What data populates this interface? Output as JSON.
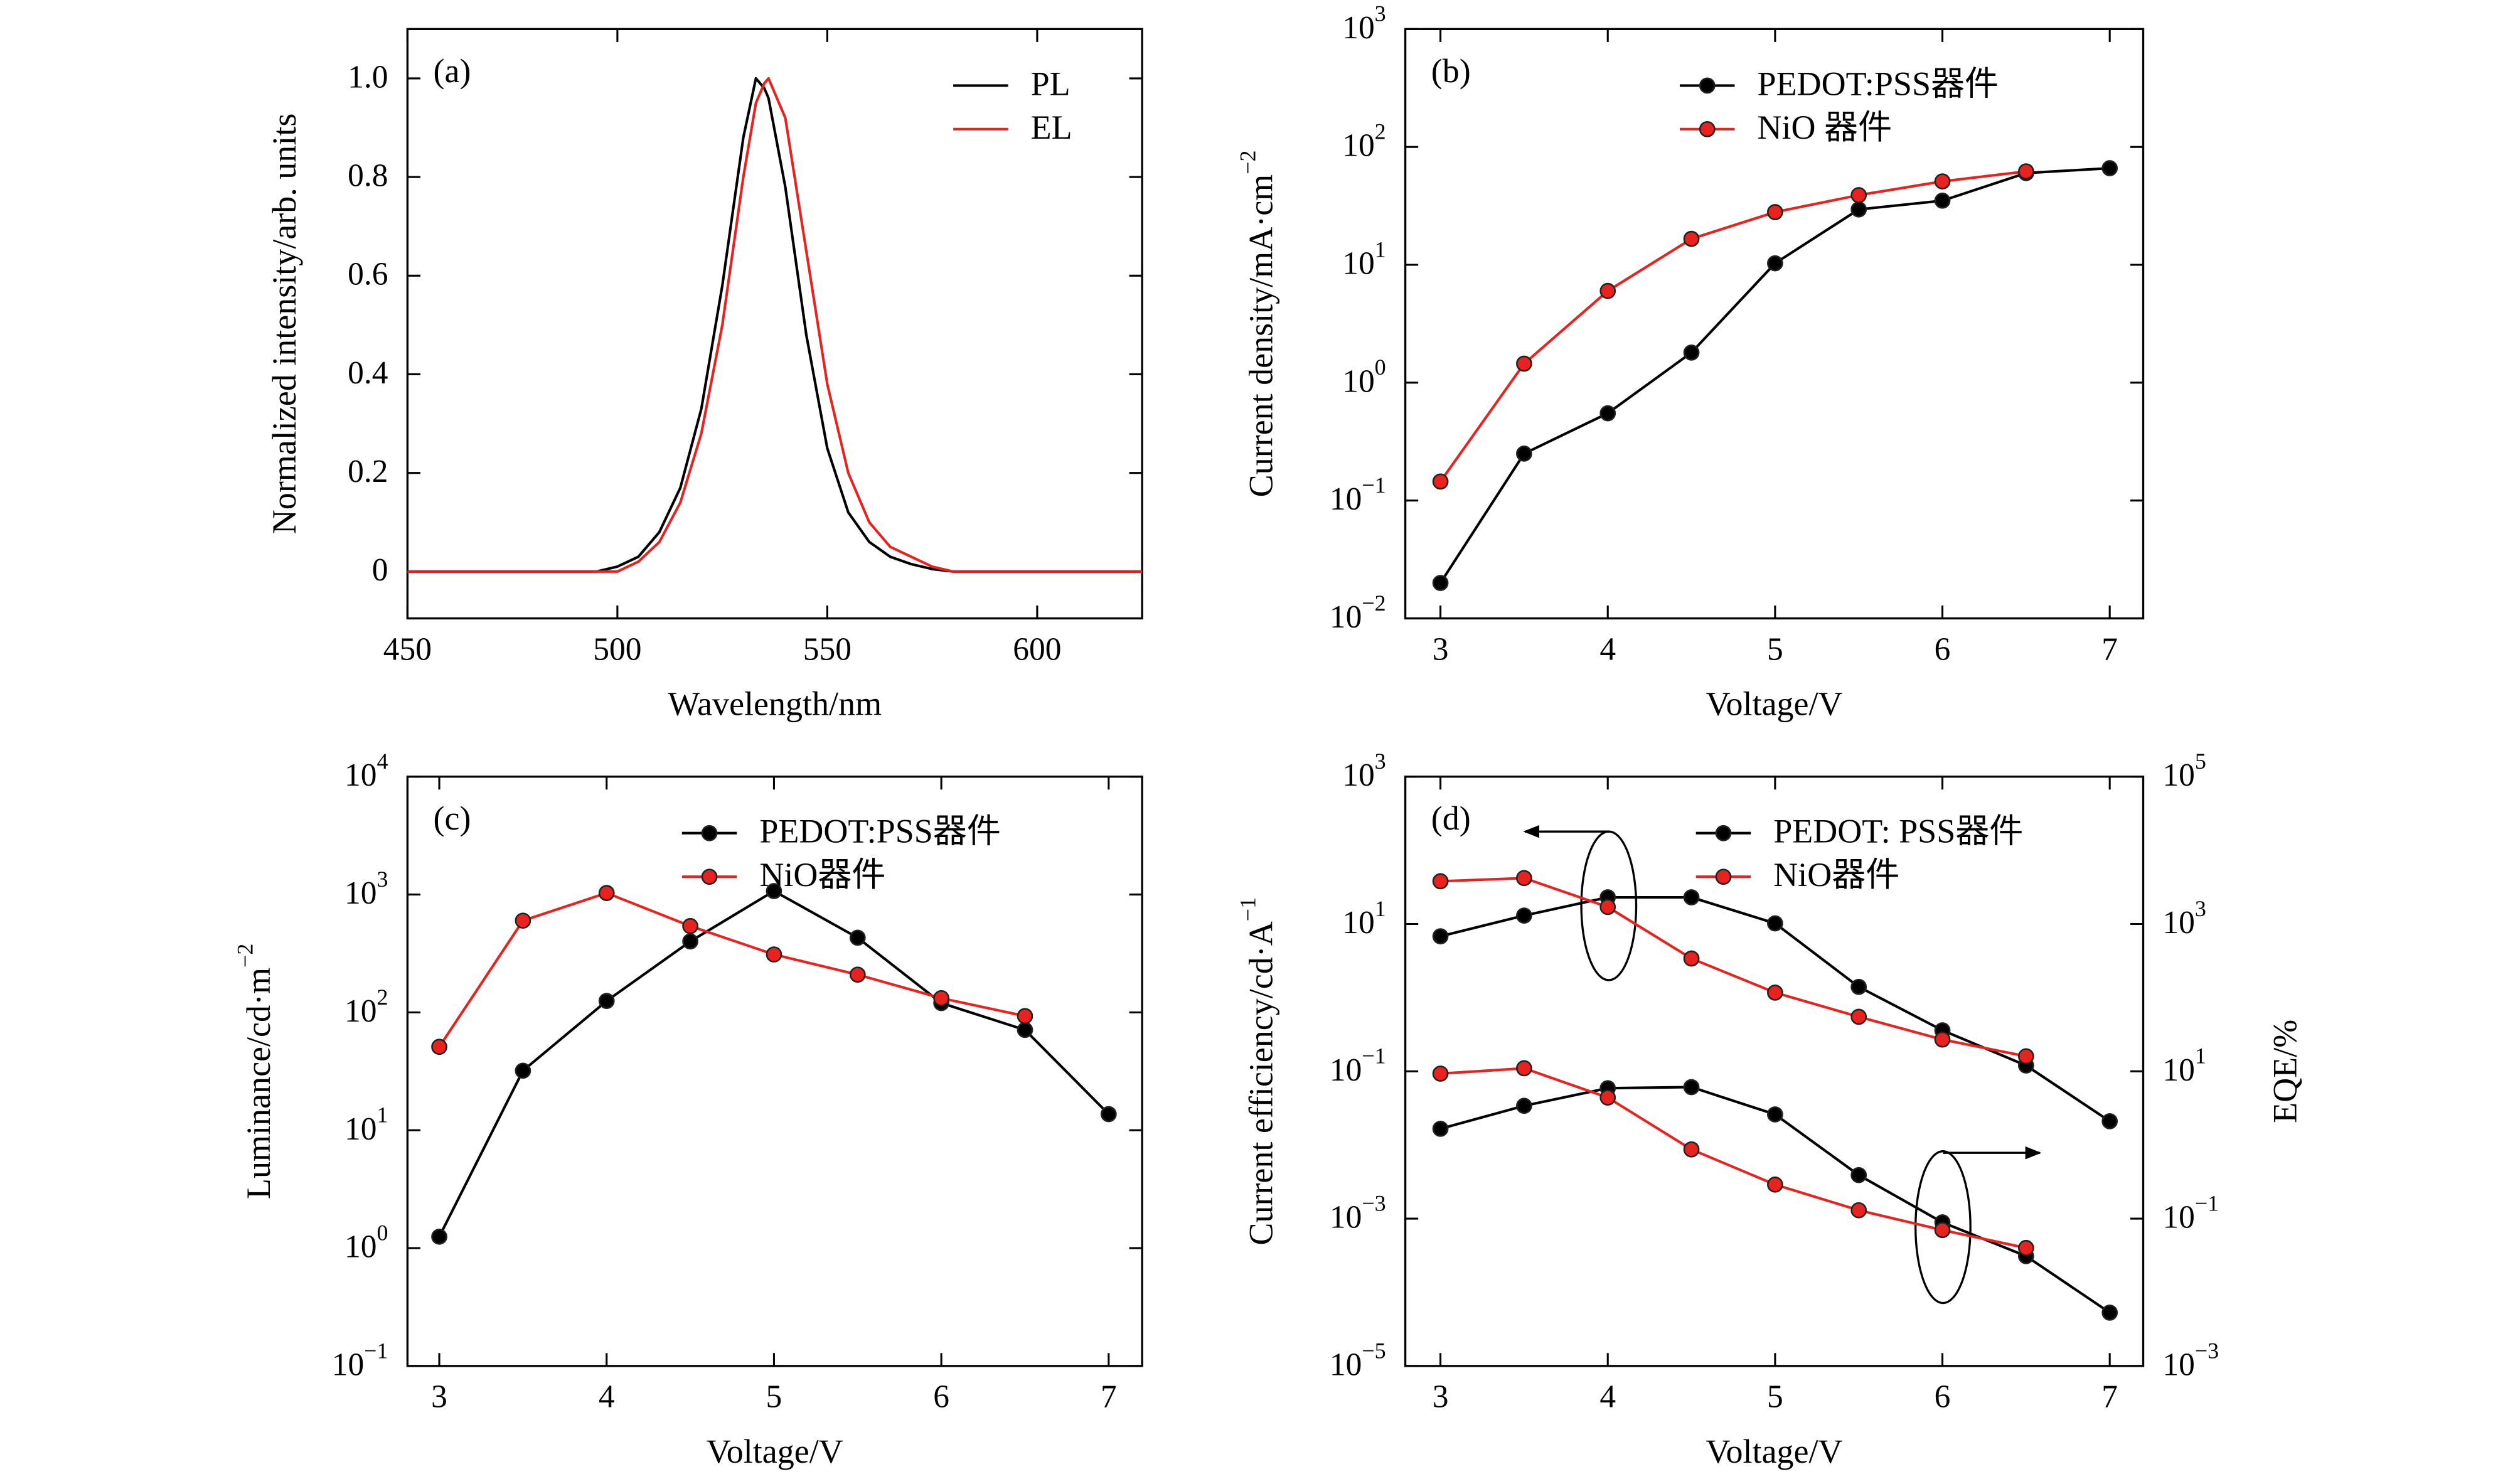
{
  "chart_data": [
    {
      "type": "line",
      "annotation": "(a)",
      "xlabel": "Wavelength/nm",
      "ylabel": "Normalized intensity/arb. units",
      "xlim": [
        450,
        625
      ],
      "ylim": [
        -0.095,
        1.1
      ],
      "xticks": [
        450,
        500,
        550,
        600
      ],
      "yticks": [
        0,
        0.2,
        0.4,
        0.6,
        0.8,
        {
          "value": 1,
          "label": "1.0"
        }
      ],
      "ylog": false,
      "markers": false,
      "legend": "upper right",
      "x": [
        450,
        460,
        470,
        480,
        490,
        495,
        500,
        505,
        510,
        515,
        520,
        525,
        530,
        533,
        535,
        536,
        540,
        545,
        550,
        555,
        560,
        565,
        570,
        575,
        580,
        590,
        600,
        610,
        625
      ],
      "series": [
        {
          "name": "PL",
          "color": "#000000",
          "values": [
            0,
            0,
            0,
            0,
            0,
            0,
            0.01,
            0.03,
            0.08,
            0.17,
            0.33,
            0.58,
            0.88,
            1.0,
            0.98,
            0.96,
            0.78,
            0.48,
            0.25,
            0.12,
            0.06,
            0.03,
            0.015,
            0.005,
            0,
            0,
            0,
            0,
            0
          ]
        },
        {
          "name": "EL",
          "color": "#e8231f",
          "values": [
            0,
            0,
            0,
            0,
            0,
            0,
            0,
            0.02,
            0.06,
            0.14,
            0.28,
            0.5,
            0.8,
            0.95,
            0.99,
            1.0,
            0.92,
            0.65,
            0.38,
            0.2,
            0.1,
            0.05,
            0.03,
            0.01,
            0,
            0,
            0,
            0,
            0
          ]
        }
      ]
    },
    {
      "type": "line",
      "annotation": "(b)",
      "xlabel": "Voltage/V",
      "ylabel": "Current density/mA·cm",
      "ylabel_sup": "−2",
      "xlim": [
        2.79,
        7.2
      ],
      "ylim": [
        0.01,
        1000
      ],
      "xticks": [
        3,
        4,
        5,
        6,
        7
      ],
      "yticks": [
        {
          "value": 0.01,
          "label": "10",
          "exp": "−2"
        },
        {
          "value": 0.1,
          "label": "10",
          "exp": "−1"
        },
        {
          "value": 1,
          "label": "10",
          "exp": "0"
        },
        {
          "value": 10,
          "label": "10",
          "exp": "1"
        },
        {
          "value": 100,
          "label": "10",
          "exp": "2"
        },
        {
          "value": 1000,
          "label": "10",
          "exp": "3"
        }
      ],
      "ylog": true,
      "markers": true,
      "legend": "upper right",
      "x": [
        3,
        3.5,
        4,
        4.5,
        5,
        5.5,
        6,
        6.5,
        7
      ],
      "series": [
        {
          "name": "PEDOT:PSS器件",
          "color": "#000000",
          "values": [
            0.02,
            0.25,
            0.55,
            1.8,
            10.3,
            29.5,
            35,
            60,
            66
          ]
        },
        {
          "name": "NiO 器件",
          "color": "#e8231f",
          "values": [
            0.145,
            1.45,
            6.0,
            16.6,
            28,
            39,
            51,
            62,
            null
          ]
        }
      ]
    },
    {
      "type": "line",
      "annotation": "(c)",
      "xlabel": "Voltage/V",
      "ylabel": "Luminance/cd·m",
      "ylabel_sup": "−2",
      "xlim": [
        2.81,
        7.2
      ],
      "ylim": [
        0.1,
        10000
      ],
      "xticks": [
        3,
        4,
        5,
        6,
        7
      ],
      "yticks": [
        {
          "value": 0.1,
          "label": "10",
          "exp": "−1"
        },
        {
          "value": 1,
          "label": "10",
          "exp": "0"
        },
        {
          "value": 10,
          "label": "10",
          "exp": "1"
        },
        {
          "value": 100,
          "label": "10",
          "exp": "2"
        },
        {
          "value": 1000,
          "label": "10",
          "exp": "3"
        },
        {
          "value": 10000,
          "label": "10",
          "exp": "4"
        }
      ],
      "ylog": true,
      "markers": true,
      "legend": "upper right",
      "x": [
        3,
        3.5,
        4,
        4.5,
        5,
        5.5,
        6,
        6.5,
        7
      ],
      "series": [
        {
          "name": "PEDOT:PSS器件",
          "color": "#000000",
          "values": [
            1.25,
            32,
            125,
            400,
            1070,
            430,
            120,
            71,
            13.7
          ]
        },
        {
          "name": "NiO器件",
          "color": "#e8231f",
          "values": [
            51,
            600,
            1030,
            540,
            310,
            209,
            132,
            93,
            null
          ]
        }
      ]
    },
    {
      "type": "line",
      "annotation": "(d)",
      "xlabel": "Voltage/V",
      "ylabel": "Current efficiency/cd·A",
      "ylabel_sup": "−1",
      "y2label": "EQE/%",
      "xlim": [
        2.79,
        7.2
      ],
      "ylim": [
        1e-05,
        1000
      ],
      "y2lim": [
        0.001,
        100000
      ],
      "xticks": [
        3,
        4,
        5,
        6,
        7
      ],
      "yticks": [
        {
          "value": 1e-05,
          "label": "10",
          "exp": "−5"
        },
        {
          "value": 0.001,
          "label": "10",
          "exp": "−3"
        },
        {
          "value": 0.1,
          "label": "10",
          "exp": "−1"
        },
        {
          "value": 10,
          "label": "10",
          "exp": "1"
        },
        {
          "value": 1000,
          "label": "10",
          "exp": "3"
        }
      ],
      "y2ticks": [
        {
          "value": 0.001,
          "label": "10",
          "exp": "−3"
        },
        {
          "value": 0.1,
          "label": "10",
          "exp": "−1"
        },
        {
          "value": 10,
          "label": "10",
          "exp": "1"
        },
        {
          "value": 1000,
          "label": "10",
          "exp": "3"
        },
        {
          "value": 100000,
          "label": "10",
          "exp": "5"
        }
      ],
      "ylog": true,
      "markers": true,
      "legend": "upper right",
      "x": [
        3,
        3.5,
        4,
        4.5,
        5,
        5.5,
        6,
        6.5,
        7
      ],
      "series": [
        {
          "name": "PEDOT: PSS器件",
          "color": "#000000",
          "values": [
            6.8,
            13,
            23,
            23,
            10.2,
            1.4,
            0.36,
            0.12,
            0.021
          ]
        },
        {
          "name": "NiO器件",
          "color": "#e8231f",
          "values": [
            38,
            42,
            17,
            3.4,
            1.17,
            0.55,
            0.27,
            0.16,
            null
          ]
        },
        {
          "name": "PEDOT: PSS器件",
          "color": "#000000",
          "axis": "y2",
          "values": [
            1.66,
            3.4,
            5.9,
            6.1,
            2.6,
            0.39,
            0.089,
            0.031,
            0.0053
          ]
        },
        {
          "name": "NiO器件",
          "color": "#e8231f",
          "axis": "y2",
          "values": [
            9.3,
            11,
            4.4,
            0.87,
            0.29,
            0.13,
            0.07,
            0.04,
            null
          ]
        }
      ]
    }
  ]
}
